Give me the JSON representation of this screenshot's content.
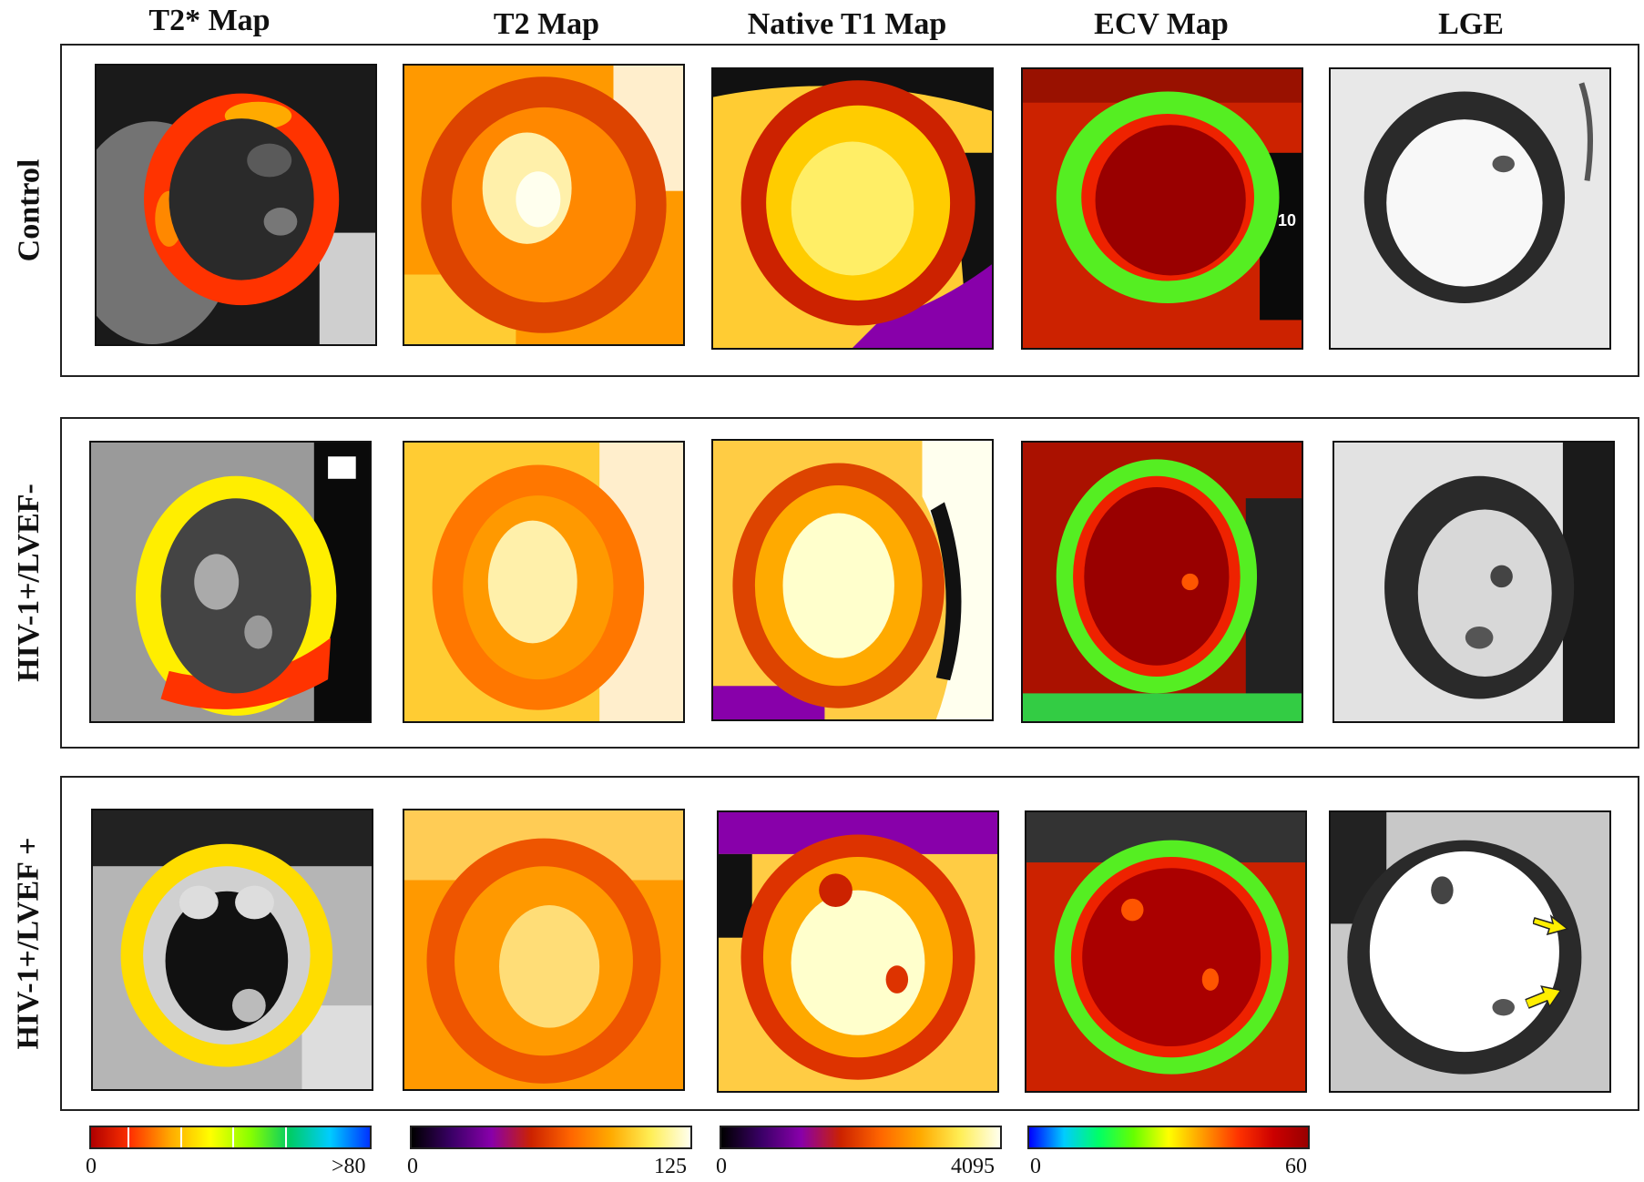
{
  "columns": {
    "t2star": "T2* Map",
    "t2": "T2 Map",
    "native_t1": "Native T1 Map",
    "ecv": "ECV Map",
    "lge": "LGE"
  },
  "rows": {
    "control": "Control",
    "lvef_neg": "HIV-1+/LVEF-",
    "lvef_pos": "HIV-1+/LVEF +"
  },
  "overlay_text": "10",
  "colorbars": {
    "t2star": {
      "min": "0",
      "max": ">80",
      "colors": [
        "#b00000",
        "#ff3300",
        "#ffaa00",
        "#ffff00",
        "#88ff00",
        "#00cc66",
        "#00ccff",
        "#0033ff"
      ]
    },
    "t2": {
      "min": "0",
      "max": "125",
      "colors": [
        "#000000",
        "#3a0066",
        "#8800aa",
        "#cc2200",
        "#ff6600",
        "#ffaa00",
        "#ffee55",
        "#ffffee"
      ]
    },
    "native_t1": {
      "min": "0",
      "max": "4095",
      "colors": [
        "#000000",
        "#3a0066",
        "#8800aa",
        "#cc2200",
        "#ff6600",
        "#ffaa00",
        "#ffee55",
        "#ffffee"
      ]
    },
    "ecv": {
      "min": "0",
      "max": "60",
      "colors": [
        "#0000ff",
        "#00ccff",
        "#00ff66",
        "#66ff00",
        "#ffff00",
        "#ff9900",
        "#ff3300",
        "#cc0000",
        "#990000"
      ]
    }
  },
  "palette": {
    "frame": "#222222",
    "arrow_fill": "#ffee00",
    "arrow_stroke": "#222222"
  }
}
